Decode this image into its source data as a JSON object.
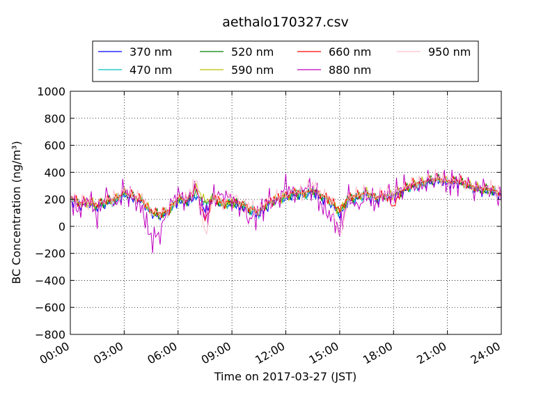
{
  "chart_data": {
    "type": "line",
    "title": "aethalo170327.csv",
    "xlabel": "Time on 2017-03-27 (JST)",
    "ylabel": "BC Concentration (ng/m³)",
    "ylim": [
      -800,
      1000
    ],
    "yticks": [
      "−800",
      "−600",
      "−400",
      "−200",
      "0",
      "200",
      "400",
      "600",
      "800",
      "1000"
    ],
    "xlim": [
      "00:00",
      "24:00"
    ],
    "xticks": [
      "00:00",
      "03:00",
      "06:00",
      "09:00",
      "12:00",
      "15:00",
      "18:00",
      "21:00",
      "24:00"
    ],
    "grid": true,
    "legend_position": "top",
    "x": [
      "00:00",
      "00:30",
      "01:00",
      "01:30",
      "02:00",
      "02:30",
      "03:00",
      "03:30",
      "04:00",
      "04:30",
      "05:00",
      "05:30",
      "06:00",
      "06:30",
      "07:00",
      "07:30",
      "08:00",
      "08:30",
      "09:00",
      "09:30",
      "10:00",
      "10:30",
      "11:00",
      "11:30",
      "12:00",
      "12:30",
      "13:00",
      "13:30",
      "14:00",
      "14:30",
      "15:00",
      "15:30",
      "16:00",
      "16:30",
      "17:00",
      "17:30",
      "18:00",
      "18:30",
      "19:00",
      "19:30",
      "20:00",
      "20:30",
      "21:00",
      "21:30",
      "22:00",
      "22:30",
      "23:00",
      "23:30",
      "24:00"
    ],
    "series": [
      {
        "name": "370 nm",
        "color": "#0000ff",
        "values": [
          200,
          150,
          160,
          140,
          170,
          180,
          230,
          200,
          170,
          90,
          70,
          100,
          190,
          170,
          220,
          120,
          190,
          140,
          160,
          150,
          110,
          90,
          150,
          180,
          200,
          230,
          220,
          250,
          210,
          170,
          80,
          190,
          200,
          230,
          190,
          210,
          220,
          250,
          290,
          300,
          320,
          330,
          310,
          320,
          300,
          270,
          260,
          250,
          220
        ]
      },
      {
        "name": "470 nm",
        "color": "#00bfbf",
        "values": [
          210,
          160,
          170,
          150,
          180,
          190,
          240,
          210,
          180,
          100,
          80,
          110,
          200,
          180,
          230,
          160,
          200,
          150,
          170,
          160,
          120,
          100,
          160,
          190,
          210,
          240,
          230,
          260,
          220,
          180,
          100,
          200,
          210,
          240,
          200,
          220,
          230,
          260,
          300,
          310,
          330,
          340,
          320,
          330,
          310,
          280,
          270,
          260,
          230
        ]
      },
      {
        "name": "520 nm",
        "color": "#008000",
        "values": [
          215,
          165,
          175,
          155,
          185,
          195,
          245,
          215,
          185,
          105,
          85,
          115,
          205,
          185,
          250,
          170,
          205,
          155,
          175,
          165,
          125,
          105,
          165,
          195,
          215,
          245,
          235,
          265,
          225,
          185,
          105,
          205,
          215,
          245,
          205,
          225,
          235,
          265,
          305,
          315,
          335,
          345,
          325,
          335,
          315,
          285,
          275,
          265,
          235
        ]
      },
      {
        "name": "590 nm",
        "color": "#bfbf00",
        "values": [
          220,
          170,
          180,
          160,
          190,
          200,
          250,
          220,
          190,
          110,
          90,
          120,
          210,
          190,
          300,
          180,
          210,
          160,
          180,
          170,
          130,
          110,
          170,
          200,
          220,
          250,
          240,
          270,
          230,
          190,
          110,
          210,
          220,
          250,
          210,
          230,
          240,
          270,
          310,
          320,
          340,
          350,
          330,
          340,
          320,
          290,
          280,
          270,
          240
        ]
      },
      {
        "name": "660 nm",
        "color": "#ff0000",
        "values": [
          225,
          175,
          185,
          165,
          195,
          205,
          255,
          225,
          195,
          115,
          95,
          125,
          215,
          195,
          280,
          40,
          220,
          165,
          190,
          175,
          135,
          115,
          175,
          205,
          225,
          255,
          245,
          275,
          235,
          195,
          120,
          215,
          225,
          255,
          215,
          235,
          150,
          275,
          315,
          325,
          345,
          355,
          335,
          345,
          325,
          295,
          285,
          275,
          245
        ]
      },
      {
        "name": "880 nm",
        "color": "#bf00bf",
        "values": [
          180,
          120,
          220,
          80,
          240,
          150,
          260,
          200,
          130,
          -100,
          -40,
          150,
          250,
          180,
          280,
          60,
          220,
          240,
          200,
          140,
          60,
          80,
          200,
          160,
          300,
          230,
          280,
          300,
          150,
          80,
          -30,
          210,
          140,
          220,
          170,
          250,
          230,
          300,
          290,
          290,
          330,
          360,
          310,
          320,
          340,
          260,
          300,
          260,
          180
        ]
      },
      {
        "name": "950 nm",
        "color": "#ffc0cb",
        "values": [
          230,
          180,
          190,
          170,
          200,
          210,
          260,
          230,
          200,
          120,
          100,
          130,
          220,
          200,
          350,
          -80,
          230,
          170,
          240,
          180,
          140,
          120,
          180,
          210,
          230,
          260,
          250,
          320,
          240,
          200,
          -100,
          220,
          230,
          260,
          220,
          240,
          250,
          280,
          320,
          330,
          350,
          360,
          340,
          350,
          330,
          300,
          290,
          280,
          250
        ]
      }
    ]
  }
}
